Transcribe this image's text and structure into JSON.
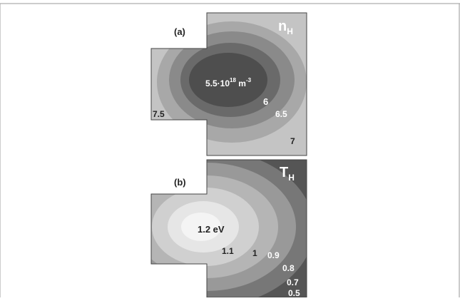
{
  "panels": [
    {
      "label": "(a)",
      "quantity": "n",
      "subscript": "H",
      "center_label": {
        "base": "5.5·10",
        "exp": "18",
        "unit": " m",
        "unit_exp": "-3"
      },
      "contour_labels": [
        "6",
        "6.5",
        "7",
        "7.5"
      ]
    },
    {
      "label": "(b)",
      "quantity": "T",
      "subscript": "H",
      "contour_labels": [
        "1.2 eV",
        "1.1",
        "1",
        "0.9",
        "0.8",
        "0.7",
        "0.5"
      ]
    }
  ]
}
